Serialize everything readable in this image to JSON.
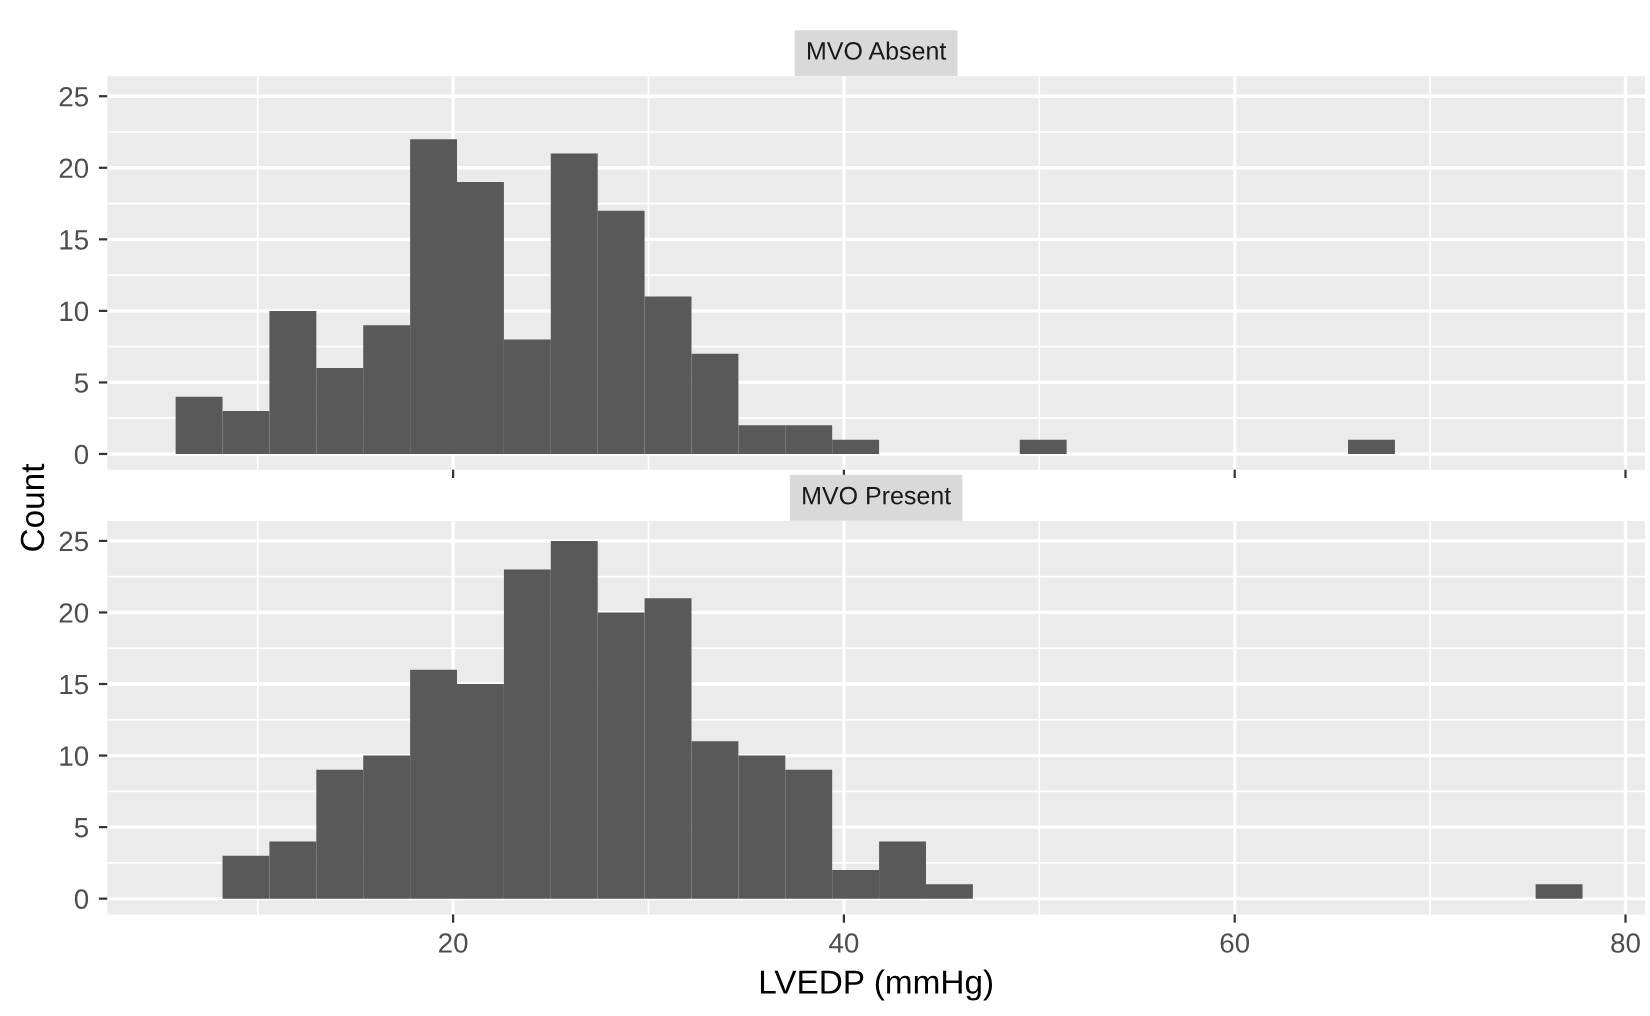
{
  "chart_data": [
    {
      "type": "histogram",
      "title": "MVO Absent",
      "ylabel": "Count",
      "color": "#595959",
      "bins": [
        5.8,
        8.2,
        10.6,
        13,
        15.4,
        17.8,
        20.2,
        22.6,
        25,
        27.4,
        29.8,
        32.2,
        34.6,
        37,
        39.4,
        41.8,
        44.2,
        46.6,
        49,
        51.4,
        53.8,
        56.2,
        58.6,
        61,
        63.4,
        65.8,
        68.2,
        70.6,
        73,
        75.4,
        77.8
      ],
      "values": [
        4,
        3,
        10,
        6,
        9,
        22,
        19,
        8,
        21,
        17,
        11,
        7,
        2,
        2,
        1,
        0,
        0,
        0,
        1,
        0,
        0,
        0,
        0,
        0,
        0,
        1,
        0,
        0,
        0,
        0
      ],
      "xlim": [
        2.3,
        81
      ],
      "ylim": [
        -1.1,
        26.4
      ],
      "xticks": [
        20,
        40,
        60,
        80
      ],
      "yticks": [
        0,
        5,
        10,
        15,
        20,
        25
      ],
      "grid": true,
      "tick_labels": "y"
    },
    {
      "type": "histogram",
      "title": "MVO Present",
      "xlabel": "LVEDP (mmHg)",
      "color": "#595959",
      "bins": [
        5.8,
        8.2,
        10.6,
        13,
        15.4,
        17.8,
        20.2,
        22.6,
        25,
        27.4,
        29.8,
        32.2,
        34.6,
        37,
        39.4,
        41.8,
        44.2,
        46.6,
        49,
        51.4,
        53.8,
        56.2,
        58.6,
        61,
        63.4,
        65.8,
        68.2,
        70.6,
        73,
        75.4,
        77.8
      ],
      "values": [
        0,
        3,
        4,
        9,
        10,
        16,
        15,
        23,
        25,
        20,
        21,
        11,
        10,
        9,
        2,
        4,
        1,
        0,
        0,
        0,
        0,
        0,
        0,
        0,
        0,
        0,
        0,
        0,
        0,
        1
      ],
      "xlim": [
        2.3,
        81
      ],
      "ylim": [
        -1.1,
        26.4
      ],
      "xticks": [
        20,
        40,
        60,
        80
      ],
      "yticks": [
        0,
        5,
        10,
        15,
        20,
        25
      ],
      "grid": true
    }
  ]
}
